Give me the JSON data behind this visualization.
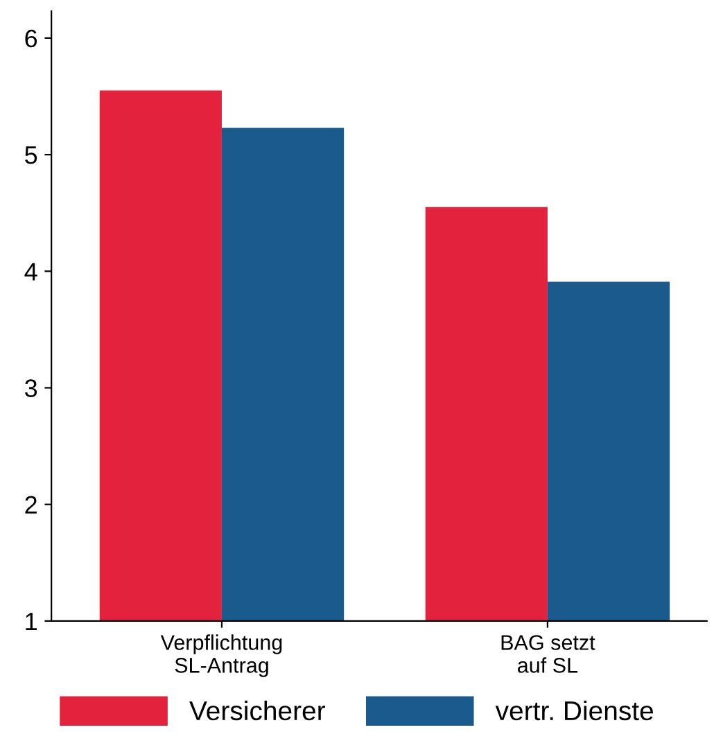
{
  "chart_data": {
    "type": "bar",
    "categories": [
      "Verpflichtung\nSL-Antrag",
      "BAG setzt\nauf SL"
    ],
    "series": [
      {
        "name": "Versicherer",
        "color": "#e3233d",
        "values": [
          5.55,
          4.55
        ]
      },
      {
        "name": "vertr. Dienste",
        "color": "#1b5a8c",
        "values": [
          5.23,
          3.91
        ]
      }
    ],
    "ylim": [
      1,
      6.23
    ],
    "yticks": [
      1,
      2,
      3,
      4,
      5,
      6
    ],
    "grid": false,
    "legend": "bottom"
  }
}
